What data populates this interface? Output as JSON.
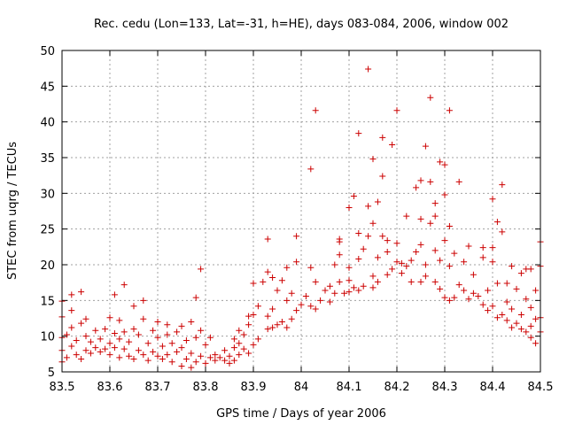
{
  "chart_data": {
    "type": "scatter",
    "title": "Rec. cedu (Lon=133, Lat=-31, h=HE), days 083-084, 2006, window 002",
    "xlabel": "GPS time / Days of year 2006",
    "ylabel": "STEC from uqrg / TECUs",
    "xlim": [
      83.5,
      84.5
    ],
    "ylim": [
      5,
      50
    ],
    "xticks": [
      "83.5",
      "83.6",
      "83.7",
      "83.8",
      "83.9",
      "84",
      "84.1",
      "84.2",
      "84.3",
      "84.4",
      "84.5"
    ],
    "yticks": [
      "5",
      "10",
      "15",
      "20",
      "25",
      "30",
      "35",
      "40",
      "45",
      "50"
    ],
    "grid": true,
    "marker": "plus",
    "color": "#cc0000",
    "points": [
      [
        83.5,
        6.4
      ],
      [
        83.5,
        8.0
      ],
      [
        83.5,
        9.8
      ],
      [
        83.5,
        12.7
      ],
      [
        83.5,
        14.9
      ],
      [
        83.51,
        7.0
      ],
      [
        83.51,
        10.2
      ],
      [
        83.52,
        8.6
      ],
      [
        83.52,
        11.2
      ],
      [
        83.52,
        15.8
      ],
      [
        83.52,
        13.6
      ],
      [
        83.53,
        7.4
      ],
      [
        83.53,
        9.4
      ],
      [
        83.54,
        6.8
      ],
      [
        83.54,
        11.8
      ],
      [
        83.54,
        16.2
      ],
      [
        83.55,
        8.0
      ],
      [
        83.55,
        10.0
      ],
      [
        83.55,
        12.4
      ],
      [
        83.56,
        7.6
      ],
      [
        83.56,
        9.2
      ],
      [
        83.57,
        8.4
      ],
      [
        83.57,
        10.8
      ],
      [
        83.58,
        7.8
      ],
      [
        83.58,
        9.6
      ],
      [
        83.59,
        8.2
      ],
      [
        83.59,
        11.0
      ],
      [
        83.6,
        7.4
      ],
      [
        83.6,
        9.0
      ],
      [
        83.6,
        12.6
      ],
      [
        83.61,
        8.4
      ],
      [
        83.61,
        10.4
      ],
      [
        83.61,
        15.8
      ],
      [
        83.62,
        7.0
      ],
      [
        83.62,
        9.6
      ],
      [
        83.62,
        12.2
      ],
      [
        83.63,
        8.2
      ],
      [
        83.63,
        10.6
      ],
      [
        83.63,
        17.2
      ],
      [
        83.64,
        7.2
      ],
      [
        83.64,
        9.2
      ],
      [
        83.65,
        6.8
      ],
      [
        83.65,
        11.0
      ],
      [
        83.65,
        14.2
      ],
      [
        83.66,
        8.0
      ],
      [
        83.66,
        10.2
      ],
      [
        83.67,
        7.4
      ],
      [
        83.67,
        12.4
      ],
      [
        83.67,
        15.0
      ],
      [
        83.68,
        6.6
      ],
      [
        83.68,
        9.0
      ],
      [
        83.69,
        7.8
      ],
      [
        83.69,
        10.8
      ],
      [
        83.7,
        7.2
      ],
      [
        83.7,
        9.8
      ],
      [
        83.7,
        12.0
      ],
      [
        83.71,
        6.8
      ],
      [
        83.71,
        8.6
      ],
      [
        83.72,
        7.4
      ],
      [
        83.72,
        10.2
      ],
      [
        83.72,
        11.6
      ],
      [
        83.73,
        6.4
      ],
      [
        83.73,
        9.0
      ],
      [
        83.74,
        7.8
      ],
      [
        83.74,
        10.6
      ],
      [
        83.75,
        5.8
      ],
      [
        83.75,
        8.4
      ],
      [
        83.75,
        11.4
      ],
      [
        83.76,
        6.8
      ],
      [
        83.76,
        9.4
      ],
      [
        83.77,
        5.6
      ],
      [
        83.77,
        7.6
      ],
      [
        83.77,
        12.0
      ],
      [
        83.78,
        6.4
      ],
      [
        83.78,
        9.8
      ],
      [
        83.78,
        15.4
      ],
      [
        83.79,
        7.2
      ],
      [
        83.79,
        10.8
      ],
      [
        83.79,
        19.4
      ],
      [
        83.8,
        6.2
      ],
      [
        83.8,
        8.8
      ],
      [
        83.81,
        7.0
      ],
      [
        83.81,
        9.8
      ],
      [
        83.82,
        7.4
      ],
      [
        83.82,
        6.6
      ],
      [
        83.83,
        7.0
      ],
      [
        83.84,
        6.6
      ],
      [
        83.84,
        8.0
      ],
      [
        83.85,
        7.2
      ],
      [
        83.85,
        6.2
      ],
      [
        83.86,
        6.6
      ],
      [
        83.86,
        8.4
      ],
      [
        83.86,
        9.6
      ],
      [
        83.87,
        7.4
      ],
      [
        83.87,
        9.0
      ],
      [
        83.87,
        10.8
      ],
      [
        83.88,
        8.2
      ],
      [
        83.88,
        10.2
      ],
      [
        83.89,
        7.6
      ],
      [
        83.89,
        11.6
      ],
      [
        83.89,
        12.8
      ],
      [
        83.9,
        8.8
      ],
      [
        83.9,
        13.0
      ],
      [
        83.9,
        17.4
      ],
      [
        83.91,
        9.6
      ],
      [
        83.91,
        14.2
      ],
      [
        83.92,
        17.6
      ],
      [
        83.93,
        11.0
      ],
      [
        83.93,
        12.8
      ],
      [
        83.93,
        19.0
      ],
      [
        83.93,
        23.6
      ],
      [
        83.94,
        11.2
      ],
      [
        83.94,
        13.8
      ],
      [
        83.94,
        18.2
      ],
      [
        83.95,
        11.6
      ],
      [
        83.95,
        16.4
      ],
      [
        83.96,
        12.0
      ],
      [
        83.96,
        17.8
      ],
      [
        83.97,
        11.2
      ],
      [
        83.97,
        15.0
      ],
      [
        83.97,
        19.6
      ],
      [
        83.98,
        12.4
      ],
      [
        83.98,
        16.0
      ],
      [
        83.99,
        13.6
      ],
      [
        83.99,
        20.4
      ],
      [
        83.99,
        24.0
      ],
      [
        84.0,
        14.4
      ],
      [
        84.01,
        15.6
      ],
      [
        84.02,
        14.2
      ],
      [
        84.02,
        19.6
      ],
      [
        84.02,
        33.4
      ],
      [
        84.03,
        41.6
      ],
      [
        84.03,
        13.8
      ],
      [
        84.03,
        17.6
      ],
      [
        84.04,
        15.0
      ],
      [
        84.05,
        16.4
      ],
      [
        84.06,
        14.8
      ],
      [
        84.06,
        17.0
      ],
      [
        84.07,
        16.0
      ],
      [
        84.07,
        20.0
      ],
      [
        84.08,
        17.6
      ],
      [
        84.08,
        21.4
      ],
      [
        84.08,
        23.2
      ],
      [
        84.08,
        23.6
      ],
      [
        84.09,
        16.0
      ],
      [
        84.1,
        16.2
      ],
      [
        84.1,
        17.8
      ],
      [
        84.1,
        19.6
      ],
      [
        84.1,
        28.0
      ],
      [
        84.11,
        29.6
      ],
      [
        84.11,
        16.8
      ],
      [
        84.12,
        16.4
      ],
      [
        84.12,
        20.8
      ],
      [
        84.12,
        24.4
      ],
      [
        84.12,
        38.4
      ],
      [
        84.13,
        22.2
      ],
      [
        84.13,
        17.0
      ],
      [
        84.14,
        24.0
      ],
      [
        84.14,
        28.2
      ],
      [
        84.14,
        47.4
      ],
      [
        84.15,
        16.8
      ],
      [
        84.15,
        18.4
      ],
      [
        84.15,
        25.8
      ],
      [
        84.15,
        34.8
      ],
      [
        84.16,
        17.6
      ],
      [
        84.16,
        21.0
      ],
      [
        84.16,
        28.8
      ],
      [
        84.17,
        24.0
      ],
      [
        84.17,
        32.4
      ],
      [
        84.17,
        37.8
      ],
      [
        84.18,
        18.6
      ],
      [
        84.18,
        21.8
      ],
      [
        84.18,
        23.4
      ],
      [
        84.19,
        36.8
      ],
      [
        84.19,
        19.4
      ],
      [
        84.2,
        20.4
      ],
      [
        84.2,
        23.0
      ],
      [
        84.2,
        41.6
      ],
      [
        84.21,
        18.8
      ],
      [
        84.21,
        20.2
      ],
      [
        84.22,
        19.8
      ],
      [
        84.22,
        26.8
      ],
      [
        84.23,
        17.6
      ],
      [
        84.23,
        20.6
      ],
      [
        84.24,
        21.8
      ],
      [
        84.24,
        30.8
      ],
      [
        84.25,
        17.6
      ],
      [
        84.25,
        22.8
      ],
      [
        84.25,
        26.4
      ],
      [
        84.25,
        31.8
      ],
      [
        84.26,
        18.4
      ],
      [
        84.26,
        36.6
      ],
      [
        84.26,
        20.0
      ],
      [
        84.27,
        25.8
      ],
      [
        84.27,
        31.6
      ],
      [
        84.27,
        43.4
      ],
      [
        84.28,
        17.6
      ],
      [
        84.28,
        22.0
      ],
      [
        84.28,
        26.8
      ],
      [
        84.28,
        28.6
      ],
      [
        84.29,
        16.6
      ],
      [
        84.29,
        20.6
      ],
      [
        84.29,
        34.4
      ],
      [
        84.3,
        15.4
      ],
      [
        84.3,
        23.4
      ],
      [
        84.3,
        29.8
      ],
      [
        84.3,
        34.0
      ],
      [
        84.31,
        15.0
      ],
      [
        84.31,
        19.8
      ],
      [
        84.31,
        25.4
      ],
      [
        84.31,
        41.6
      ],
      [
        84.32,
        15.4
      ],
      [
        84.32,
        21.6
      ],
      [
        84.33,
        17.2
      ],
      [
        84.33,
        31.6
      ],
      [
        84.34,
        16.4
      ],
      [
        84.34,
        20.4
      ],
      [
        84.35,
        15.2
      ],
      [
        84.35,
        22.6
      ],
      [
        84.36,
        16.0
      ],
      [
        84.36,
        18.6
      ],
      [
        84.37,
        15.6
      ],
      [
        84.38,
        14.4
      ],
      [
        84.38,
        21.0
      ],
      [
        84.38,
        22.4
      ],
      [
        84.39,
        13.6
      ],
      [
        84.39,
        16.4
      ],
      [
        84.4,
        14.2
      ],
      [
        84.4,
        20.4
      ],
      [
        84.4,
        22.4
      ],
      [
        84.4,
        29.2
      ],
      [
        84.41,
        12.6
      ],
      [
        84.41,
        17.4
      ],
      [
        84.41,
        26.0
      ],
      [
        84.42,
        13.0
      ],
      [
        84.42,
        24.6
      ],
      [
        84.42,
        31.2
      ],
      [
        84.43,
        12.2
      ],
      [
        84.43,
        14.8
      ],
      [
        84.43,
        17.4
      ],
      [
        84.44,
        11.2
      ],
      [
        84.44,
        13.8
      ],
      [
        84.44,
        19.8
      ],
      [
        84.45,
        11.8
      ],
      [
        84.45,
        16.6
      ],
      [
        84.46,
        11.0
      ],
      [
        84.46,
        13.0
      ],
      [
        84.46,
        18.8
      ],
      [
        84.47,
        10.6
      ],
      [
        84.47,
        15.2
      ],
      [
        84.47,
        19.4
      ],
      [
        84.48,
        9.8
      ],
      [
        84.48,
        11.4
      ],
      [
        84.48,
        14.0
      ],
      [
        84.48,
        19.4
      ],
      [
        84.49,
        9.0
      ],
      [
        84.49,
        12.4
      ],
      [
        84.49,
        16.4
      ],
      [
        84.5,
        10.6
      ],
      [
        84.5,
        12.6
      ],
      [
        84.5,
        19.8
      ],
      [
        84.5,
        23.2
      ]
    ]
  }
}
